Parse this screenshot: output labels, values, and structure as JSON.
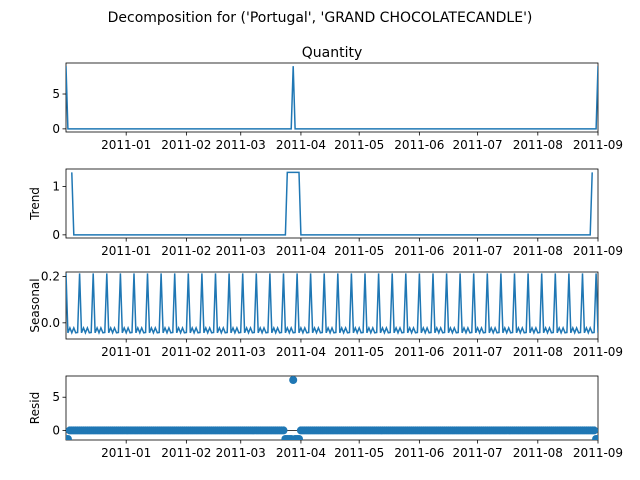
{
  "figure": {
    "suptitle": "Decomposition for ('Portugal', 'GRAND CHOCOLATECANDLE')"
  },
  "colors": {
    "series": "#1f77b4",
    "axis": "#000000",
    "background": "#ffffff"
  },
  "chart_data": [
    {
      "type": "line",
      "title": "Quantity",
      "ylabel": "",
      "xlim": [
        "2010-12-01",
        "2011-09-01"
      ],
      "ylim": [
        -0.45,
        9.45
      ],
      "yticks": [
        0,
        5
      ],
      "xticks": [
        "2011-01",
        "2011-02",
        "2011-03",
        "2011-04",
        "2011-05",
        "2011-06",
        "2011-07",
        "2011-08",
        "2011-09"
      ],
      "x": [
        "2010-12-01",
        "2010-12-02",
        "2011-03-27",
        "2011-03-28",
        "2011-03-29",
        "2011-08-31",
        "2011-09-01"
      ],
      "values": [
        9,
        0,
        0,
        9,
        0,
        0,
        9
      ]
    },
    {
      "type": "line",
      "title": "",
      "ylabel": "Trend",
      "xlim": [
        "2010-12-01",
        "2011-09-01"
      ],
      "ylim": [
        -0.065,
        1.36
      ],
      "yticks": [
        0,
        1
      ],
      "xticks": [
        "2011-01",
        "2011-02",
        "2011-03",
        "2011-04",
        "2011-05",
        "2011-06",
        "2011-07",
        "2011-08",
        "2011-09"
      ],
      "x": [
        "2010-12-04",
        "2010-12-05",
        "2011-03-24",
        "2011-03-25",
        "2011-03-31",
        "2011-04-01",
        "2011-08-28",
        "2011-08-29"
      ],
      "values": [
        1.29,
        0,
        0,
        1.29,
        1.29,
        0,
        0,
        1.29
      ]
    },
    {
      "type": "line",
      "title": "",
      "ylabel": "Seasonal",
      "xlim": [
        "2010-12-01",
        "2011-09-01"
      ],
      "ylim": [
        -0.07,
        0.22
      ],
      "yticks": [
        0.0,
        0.2
      ],
      "ytick_labels": [
        "0.0",
        "0.2"
      ],
      "xticks": [
        "2011-01",
        "2011-02",
        "2011-03",
        "2011-04",
        "2011-05",
        "2011-06",
        "2011-07",
        "2011-08",
        "2011-09"
      ],
      "period_days": 7,
      "weekly_pattern": [
        0.214,
        -0.043,
        -0.022,
        -0.043,
        -0.022,
        -0.043,
        -0.042
      ],
      "start": "2010-12-01"
    },
    {
      "type": "scatter",
      "title": "",
      "ylabel": "Resid",
      "xlim": [
        "2010-12-01",
        "2011-09-01"
      ],
      "ylim": [
        -1.45,
        8.2
      ],
      "yticks": [
        0,
        5
      ],
      "xticks": [
        "2011-01",
        "2011-02",
        "2011-03",
        "2011-04",
        "2011-05",
        "2011-06",
        "2011-07",
        "2011-08",
        "2011-09"
      ],
      "baseline": 0,
      "start": "2010-12-01",
      "end": "2011-09-01",
      "default_value": 0,
      "outliers": [
        {
          "x": "2010-12-01",
          "y": -1.3
        },
        {
          "x": "2010-12-02",
          "y": -1.3
        },
        {
          "x": "2011-03-24",
          "y": -1.3
        },
        {
          "x": "2011-03-25",
          "y": -1.3
        },
        {
          "x": "2011-03-26",
          "y": -1.3
        },
        {
          "x": "2011-03-27",
          "y": -1.3
        },
        {
          "x": "2011-03-28",
          "y": 7.6
        },
        {
          "x": "2011-03-29",
          "y": -1.3
        },
        {
          "x": "2011-03-30",
          "y": -1.3
        },
        {
          "x": "2011-03-31",
          "y": -1.3
        },
        {
          "x": "2011-08-31",
          "y": -1.3
        },
        {
          "x": "2011-09-01",
          "y": -1.3
        }
      ]
    }
  ]
}
